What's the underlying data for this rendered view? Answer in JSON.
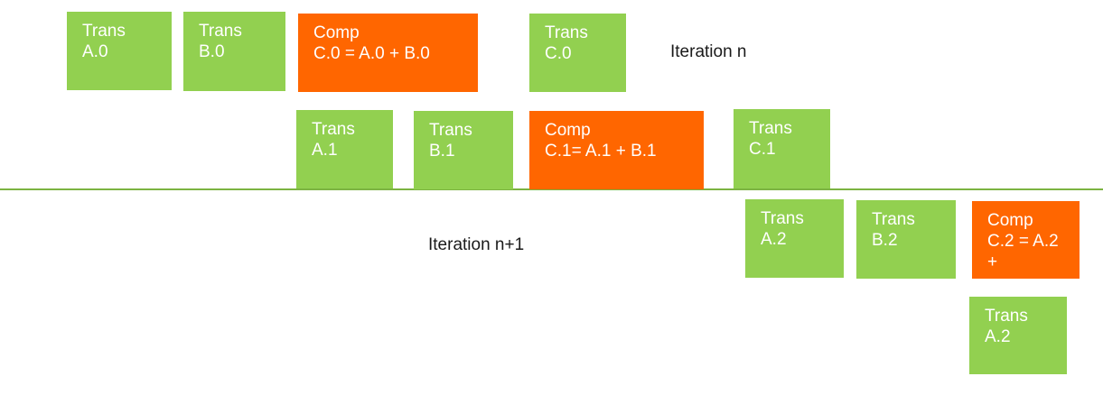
{
  "colors": {
    "trans": "#92d050",
    "comp": "#ff6600",
    "text_on_box": "#ffffff",
    "divider": "#7cb342"
  },
  "labels": {
    "iteration_n": "Iteration n",
    "iteration_n1": "Iteration n+1"
  },
  "boxes": [
    {
      "id": "trans-a0",
      "kind": "trans",
      "text": "Trans\nA.0"
    },
    {
      "id": "trans-b0",
      "kind": "trans",
      "text": "Trans\nB.0"
    },
    {
      "id": "comp-c0",
      "kind": "comp",
      "text": "Comp\nC.0 = A.0 + B.0"
    },
    {
      "id": "trans-c0",
      "kind": "trans",
      "text": "Trans\nC.0"
    },
    {
      "id": "trans-a1",
      "kind": "trans",
      "text": "Trans\nA.1"
    },
    {
      "id": "trans-b1",
      "kind": "trans",
      "text": "Trans\nB.1"
    },
    {
      "id": "comp-c1",
      "kind": "comp",
      "text": "Comp\nC.1= A.1 + B.1"
    },
    {
      "id": "trans-c1",
      "kind": "trans",
      "text": "Trans\nC.1"
    },
    {
      "id": "trans-a2",
      "kind": "trans",
      "text": "Trans\nA.2"
    },
    {
      "id": "trans-b2",
      "kind": "trans",
      "text": "Trans\nB.2"
    },
    {
      "id": "comp-c2",
      "kind": "comp",
      "text": "Comp\nC.2 = A.2\n+"
    },
    {
      "id": "trans-a2-next",
      "kind": "trans",
      "text": "Trans\nA.2"
    }
  ]
}
